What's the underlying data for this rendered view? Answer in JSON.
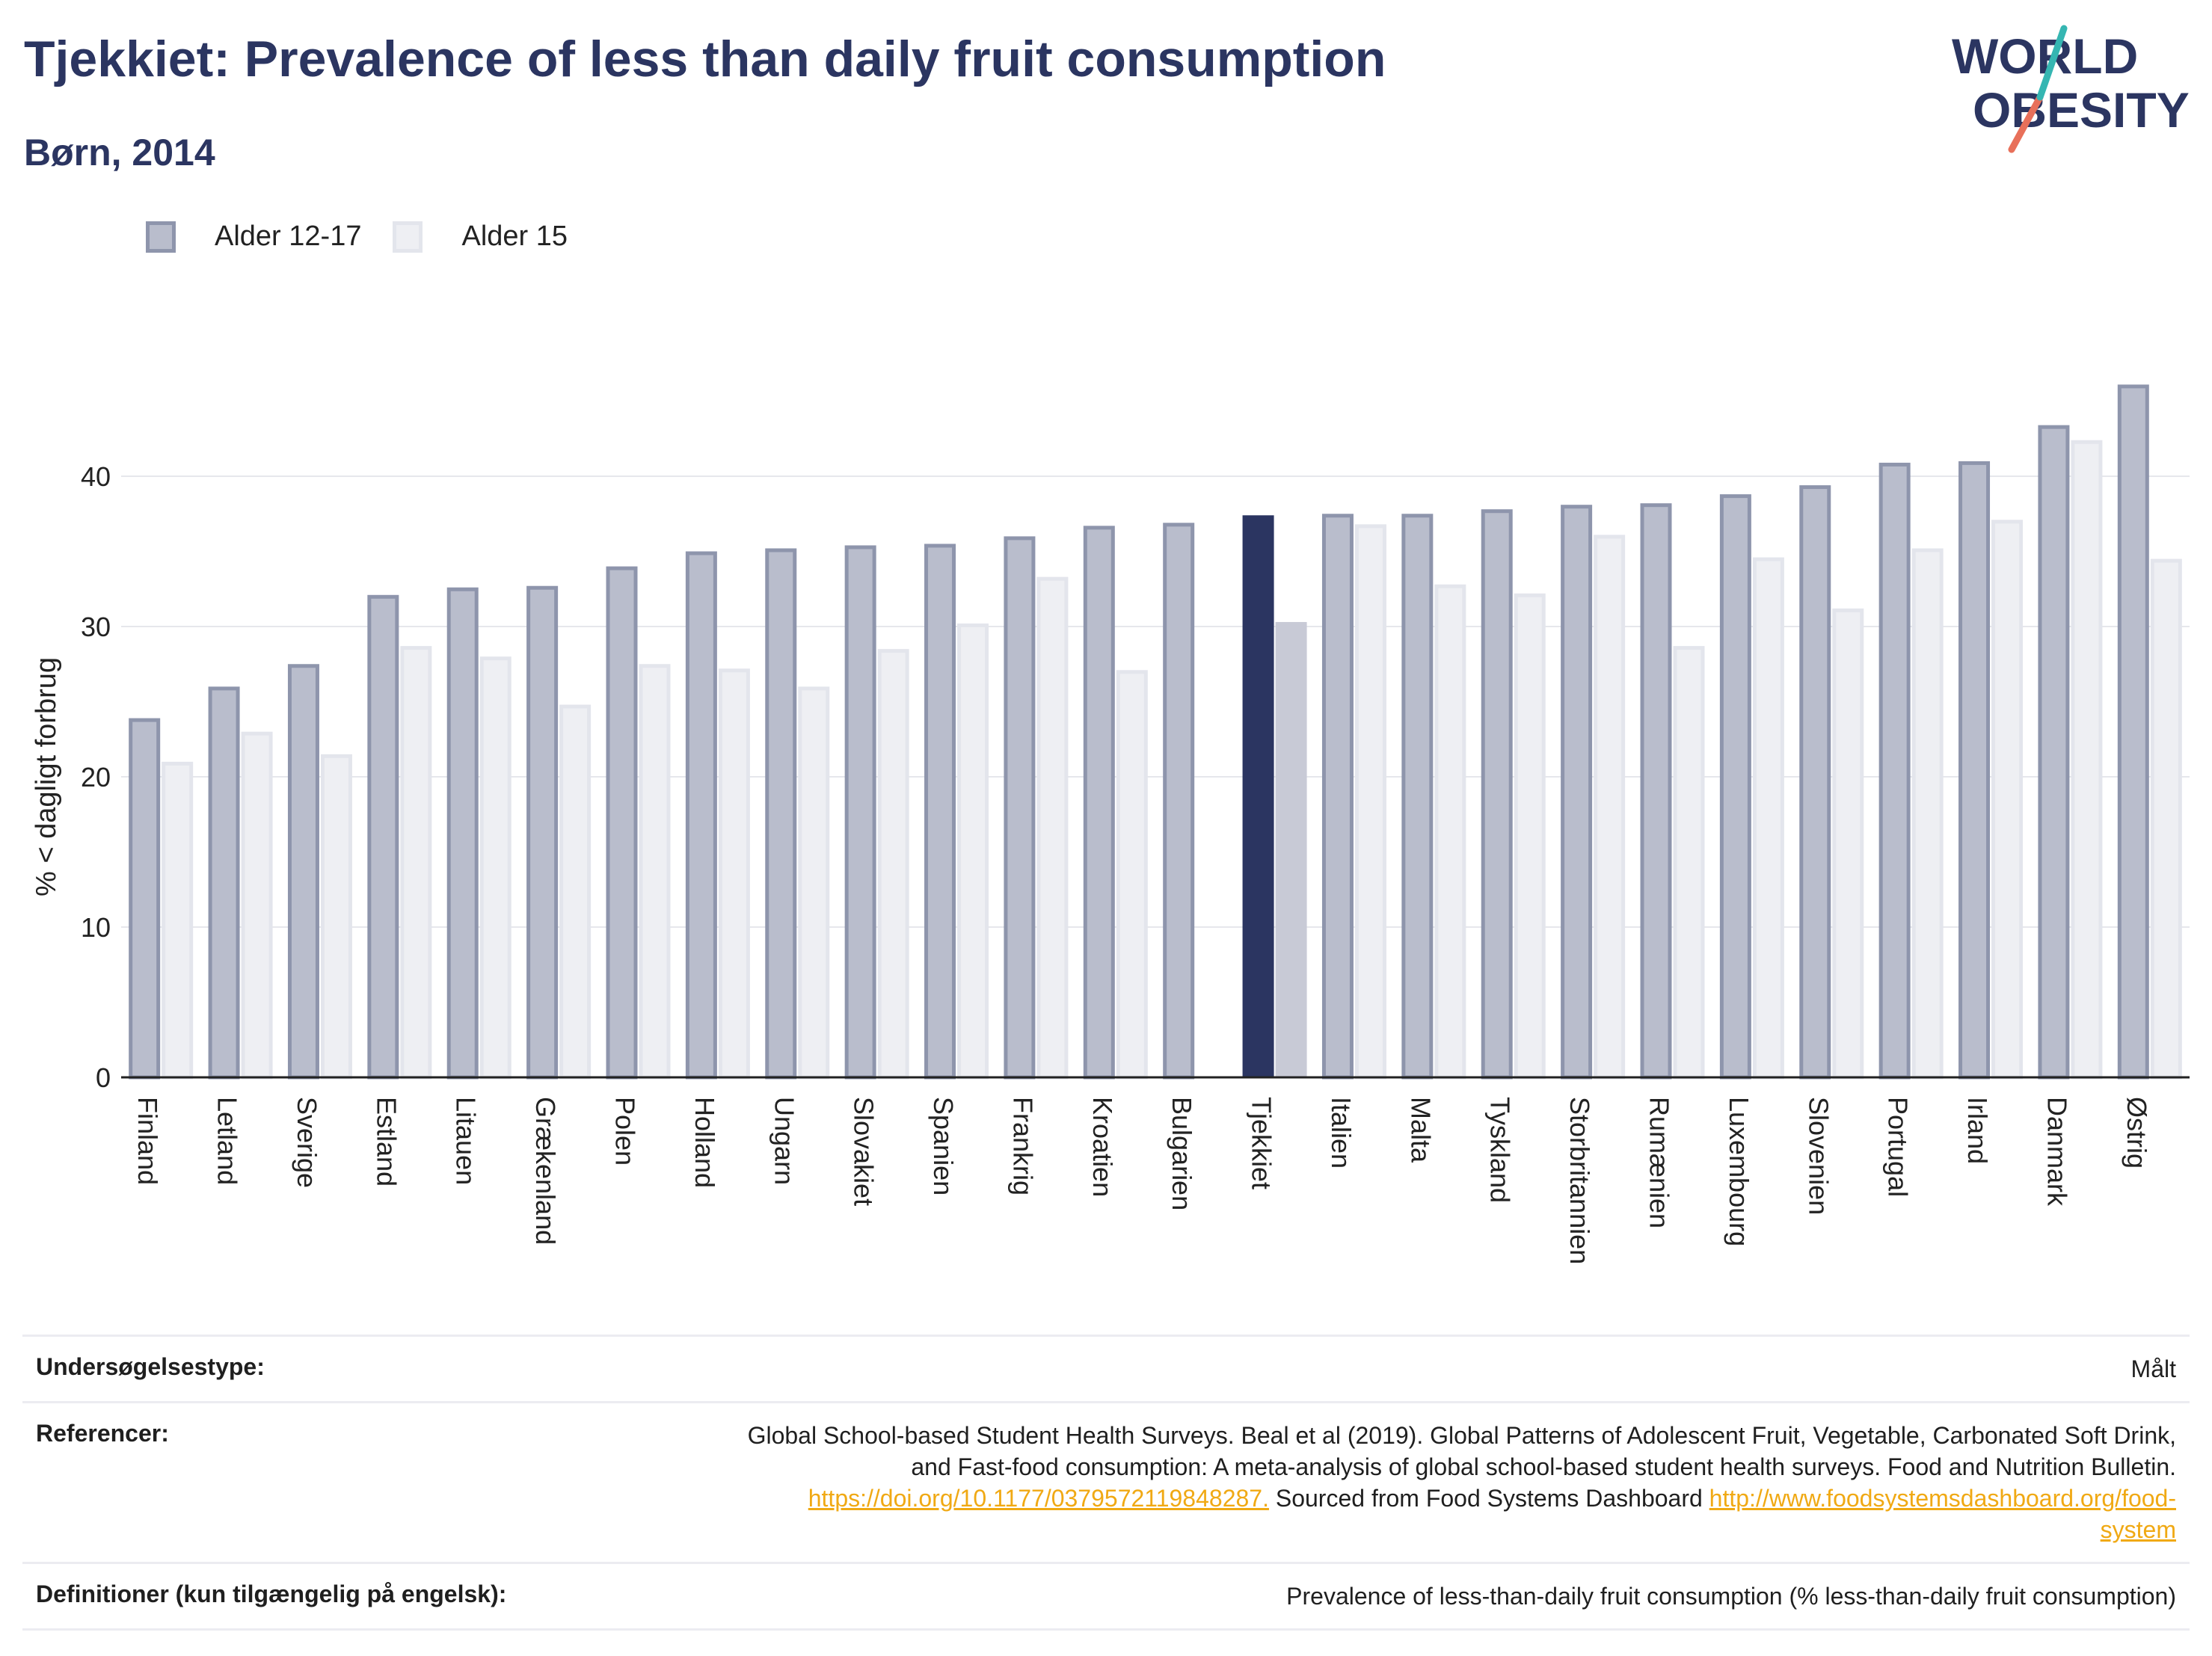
{
  "title": "Tjekkiet: Prevalence of less than daily fruit consumption",
  "subtitle": "Børn, 2014",
  "logo": {
    "line1": "WORLD",
    "line2": "OBESITY"
  },
  "colors": {
    "series1_fill": "#b9bdcc",
    "series1_stroke": "#8e95ac",
    "series2_fill": "#eeeff3",
    "series2_stroke": "#e3e5ec",
    "highlight1": "#2b3561",
    "highlight2": "#c8cad6",
    "title": "#2b3561",
    "link": "#f0a914"
  },
  "chart_data": {
    "type": "bar",
    "ylabel": "% < dagligt forbrug",
    "ylim": [
      0,
      50
    ],
    "yticks": [
      0,
      10,
      20,
      30,
      40
    ],
    "highlight": "Tjekkiet",
    "legend_position": "top-left",
    "grid": true,
    "categories": [
      "Finland",
      "Letland",
      "Sverige",
      "Estland",
      "Litauen",
      "Grækenland",
      "Polen",
      "Holland",
      "Ungarn",
      "Slovakiet",
      "Spanien",
      "Frankrig",
      "Kroatien",
      "Bulgarien",
      "Tjekkiet",
      "Italien",
      "Malta",
      "Tyskland",
      "Storbritannien",
      "Rumænien",
      "Luxembourg",
      "Slovenien",
      "Portugal",
      "Irland",
      "Danmark",
      "Østrig"
    ],
    "series": [
      {
        "name": "Alder 12-17",
        "values": [
          23.9,
          26.0,
          27.5,
          32.1,
          32.6,
          32.7,
          34.0,
          35.0,
          35.2,
          35.4,
          35.5,
          36.0,
          36.7,
          36.9,
          37.4,
          37.5,
          37.5,
          37.8,
          38.1,
          38.2,
          38.8,
          39.4,
          40.9,
          41.0,
          43.4,
          46.1
        ]
      },
      {
        "name": "Alder 15",
        "values": [
          21.0,
          23.0,
          21.5,
          28.7,
          28.0,
          24.8,
          27.5,
          27.2,
          26.0,
          28.5,
          30.2,
          33.3,
          27.1,
          null,
          30.3,
          36.8,
          32.8,
          32.2,
          36.1,
          28.7,
          34.6,
          31.2,
          35.2,
          37.1,
          42.4,
          34.5
        ]
      }
    ]
  },
  "footer": {
    "survey_type_label": "Undersøgelsestype:",
    "survey_type_value": "Målt",
    "references_label": "Referencer:",
    "references_line1": "Global School-based Student Health Surveys. Beal et al (2019). Global Patterns of Adolescent Fruit, Vegetable, Carbonated Soft Drink,",
    "references_line2": "and Fast-food consumption: A meta-analysis of global school-based student health surveys. Food and Nutrition Bulletin.",
    "references_link1": "https://doi.org/10.1177/0379572119848287.",
    "references_mid": " Sourced from Food Systems Dashboard ",
    "references_link2a": "http://www.foodsystemsdashboard.org/food-",
    "references_link2b": "system",
    "definitions_label": "Definitioner (kun tilgængelig på engelsk):",
    "definitions_value": "Prevalence of less-than-daily fruit consumption (% less-than-daily fruit consumption)"
  }
}
